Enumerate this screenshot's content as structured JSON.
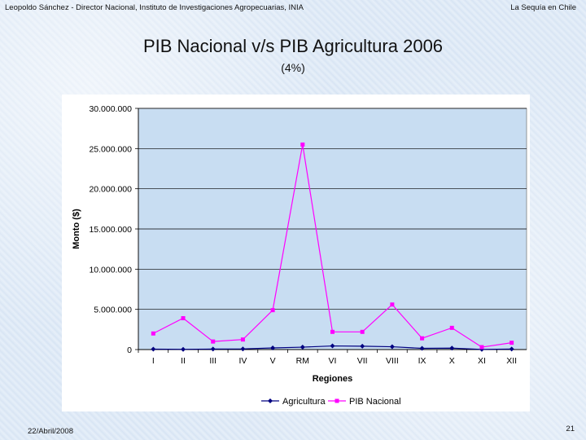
{
  "header": {
    "left": "Leopoldo Sánchez - Director Nacional, Instituto de Investigaciones Agropecuarias, INIA",
    "right": "La Sequía en Chile"
  },
  "slide": {
    "title": "PIB Nacional v/s PIB Agricultura 2006",
    "subtitle": "(4%)"
  },
  "footer": {
    "date": "22/Abril/2008",
    "page": "21"
  },
  "chart_data": {
    "type": "line",
    "categories": [
      "I",
      "II",
      "III",
      "IV",
      "V",
      "RM",
      "VI",
      "VII",
      "VIII",
      "IX",
      "X",
      "XI",
      "XII"
    ],
    "series": [
      {
        "name": "Agricultura",
        "color": "#000080",
        "marker": "diamond",
        "values": [
          50000,
          30000,
          60000,
          80000,
          200000,
          300000,
          450000,
          420000,
          350000,
          150000,
          180000,
          20000,
          60000
        ]
      },
      {
        "name": "PIB Nacional",
        "color": "#ff00ff",
        "marker": "square",
        "values": [
          2000000,
          3900000,
          1000000,
          1250000,
          4900000,
          25500000,
          2200000,
          2200000,
          5600000,
          1400000,
          2700000,
          300000,
          850000
        ]
      }
    ],
    "xlabel": "Regiones",
    "ylabel": "Monto ($)",
    "yticks": [
      "0",
      "5.000.000",
      "10.000.000",
      "15.000.000",
      "20.000.000",
      "25.000.000",
      "30.000.000"
    ],
    "ylim": [
      0,
      30000000
    ],
    "grid": "horizontal",
    "plot_background": "#c8ddf2",
    "legend": "bottom"
  }
}
